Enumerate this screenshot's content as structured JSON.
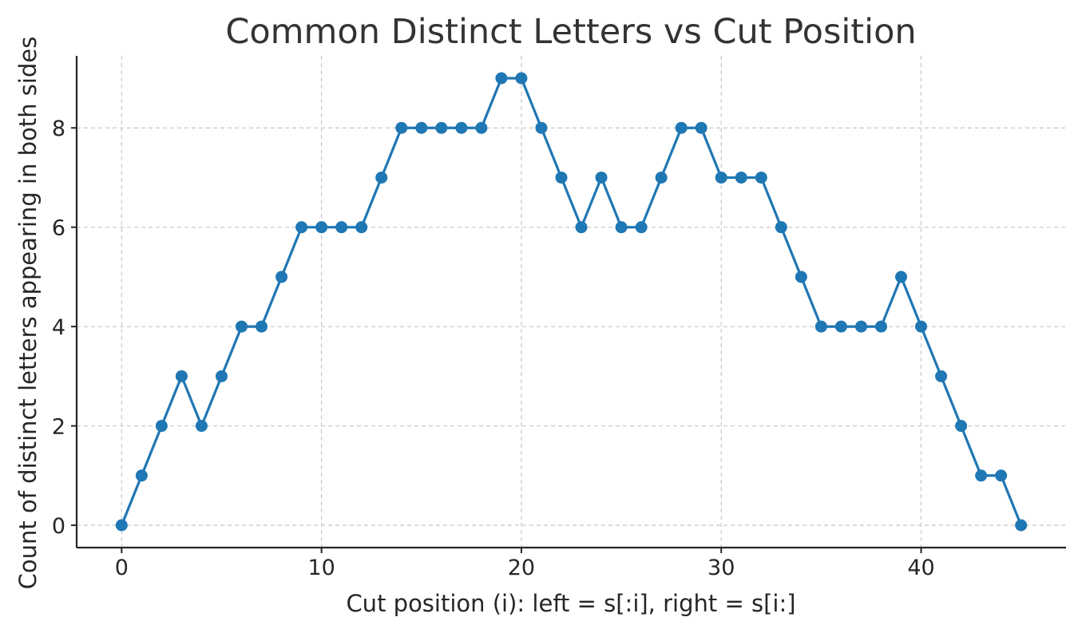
{
  "chart_data": {
    "type": "line",
    "title": "Common Distinct Letters vs Cut Position",
    "xlabel": "Cut position (i): left = s[:i], right = s[i:]",
    "ylabel": "Count of distinct letters appearing in both sides",
    "xlim": [
      -2.25,
      47.25
    ],
    "ylim": [
      -0.45,
      9.45
    ],
    "xticks": [
      0,
      10,
      20,
      30,
      40
    ],
    "yticks": [
      0,
      2,
      4,
      6,
      8
    ],
    "grid": true,
    "marker": "circle",
    "color": "#1f77b4",
    "series": [
      {
        "x": [
          0,
          1,
          2,
          3,
          4,
          5,
          6,
          7,
          8,
          9,
          10,
          11,
          12,
          13,
          14,
          15,
          16,
          17,
          18,
          19,
          20,
          21,
          22,
          23,
          24,
          25,
          26,
          27,
          28,
          29,
          30,
          31,
          32,
          33,
          34,
          35,
          36,
          37,
          38,
          39,
          40,
          41,
          42,
          43,
          44,
          45
        ],
        "values": [
          0,
          1,
          2,
          3,
          2,
          3,
          4,
          4,
          5,
          6,
          6,
          6,
          6,
          7,
          8,
          8,
          8,
          8,
          8,
          9,
          9,
          8,
          7,
          6,
          7,
          6,
          6,
          7,
          8,
          8,
          7,
          7,
          7,
          6,
          5,
          4,
          4,
          4,
          4,
          5,
          4,
          3,
          2,
          1,
          1,
          0
        ]
      }
    ]
  }
}
